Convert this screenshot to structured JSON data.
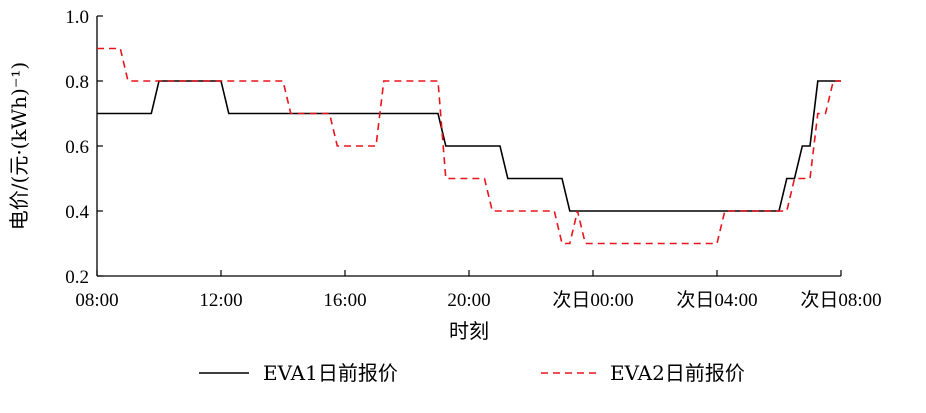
{
  "chart_data": {
    "type": "line",
    "xlabel": "时刻",
    "ylabel": "电价/(元·(kWh)⁻¹)",
    "xlim": [
      0,
      24
    ],
    "ylim": [
      0.2,
      1.0
    ],
    "x_ticks": [
      0,
      4,
      8,
      12,
      16,
      20,
      24
    ],
    "x_tick_labels": [
      "08:00",
      "12:00",
      "16:00",
      "20:00",
      "次日00:00",
      "次日04:00",
      "次日08:00"
    ],
    "y_ticks": [
      0.2,
      0.4,
      0.6,
      0.8,
      1.0
    ],
    "y_tick_labels": [
      "0.2",
      "0.4",
      "0.6",
      "0.8",
      "1.0"
    ],
    "grid": false,
    "legend_position": "bottom",
    "series": [
      {
        "name": "EVA1日前报价",
        "style": "solid",
        "color": "#000000",
        "x": [
          0,
          1.75,
          2,
          4,
          4.25,
          11,
          11.25,
          13,
          13.25,
          15,
          15.25,
          17.75,
          18,
          22,
          22.25,
          22.5,
          22.75,
          23,
          23.25,
          24
        ],
        "y": [
          0.7,
          0.7,
          0.8,
          0.8,
          0.7,
          0.7,
          0.6,
          0.6,
          0.5,
          0.5,
          0.4,
          0.4,
          0.4,
          0.4,
          0.5,
          0.5,
          0.6,
          0.6,
          0.8,
          0.8
        ]
      },
      {
        "name": "EVA2日前报价",
        "style": "dashed",
        "color": "#e8141c",
        "x": [
          0,
          0.75,
          1,
          6,
          6.25,
          7.5,
          7.75,
          9,
          9.25,
          11,
          11.25,
          12.5,
          12.75,
          14.75,
          15,
          15.25,
          15.5,
          15.75,
          20,
          20.25,
          22.25,
          22.5,
          23,
          23.25,
          23.5,
          23.75,
          24
        ],
        "y": [
          0.9,
          0.9,
          0.8,
          0.8,
          0.7,
          0.7,
          0.6,
          0.6,
          0.8,
          0.8,
          0.5,
          0.5,
          0.4,
          0.4,
          0.3,
          0.3,
          0.4,
          0.3,
          0.3,
          0.4,
          0.4,
          0.5,
          0.5,
          0.7,
          0.7,
          0.8,
          0.8
        ]
      }
    ]
  },
  "colors": {
    "eva1": "#000000",
    "eva2": "#e8141c"
  }
}
